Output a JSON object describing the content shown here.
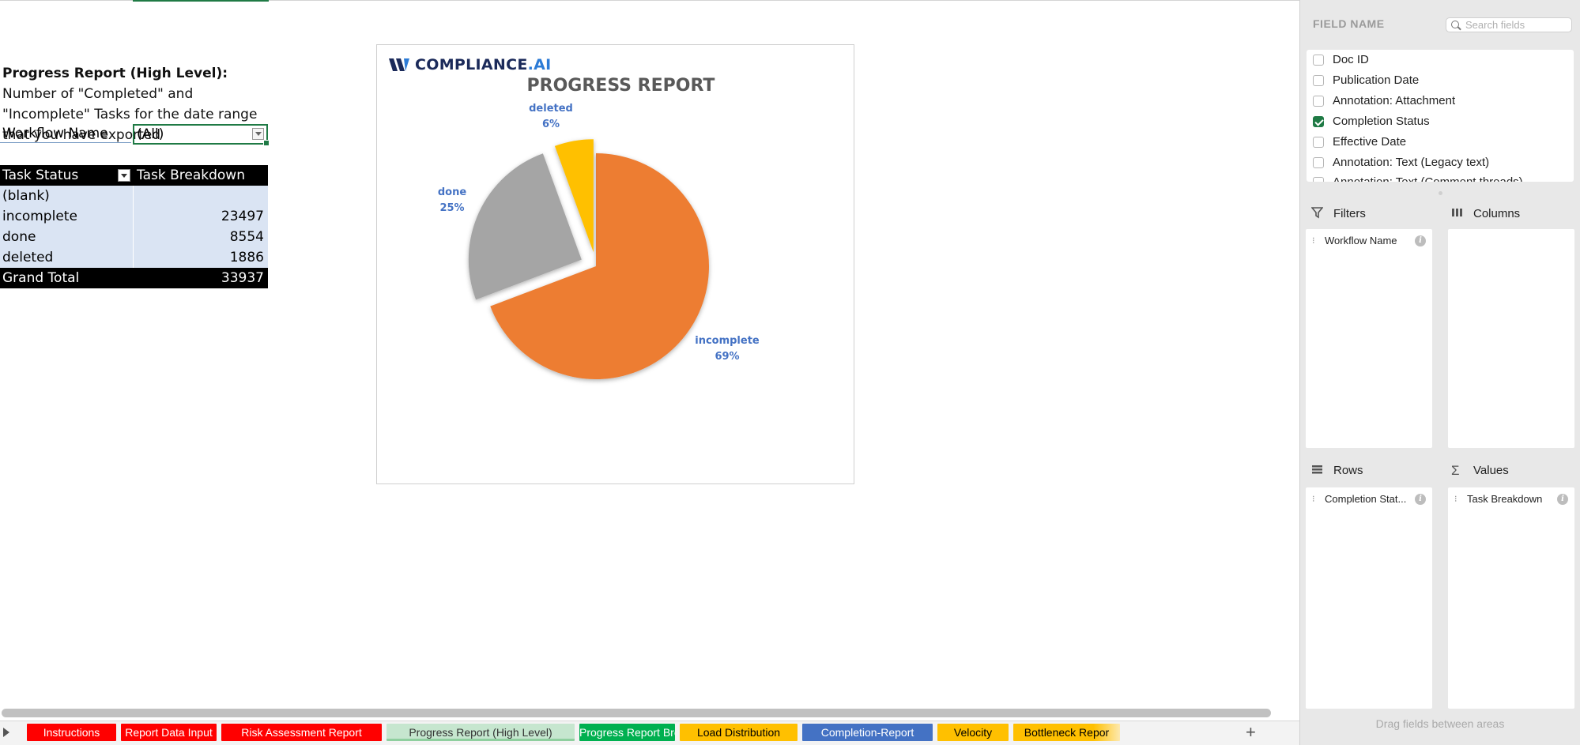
{
  "description": {
    "bold": "Progress Report (High Level):",
    "rest": " Number of \"Completed\" and \"Incomplete\" Tasks for the date range that you have exported"
  },
  "filter": {
    "label": "Workflow Name",
    "value": "(All)"
  },
  "pivot": {
    "headers": [
      "Task Status",
      "Task Breakdown"
    ],
    "rows": [
      {
        "status": "(blank)",
        "value": ""
      },
      {
        "status": "incomplete",
        "value": "23497"
      },
      {
        "status": "done",
        "value": "8554"
      },
      {
        "status": "deleted",
        "value": "1886"
      }
    ],
    "total": {
      "label": "Grand Total",
      "value": "33937"
    }
  },
  "chart_logo": {
    "brand": "COMPLIANCE",
    "suffix": ".AI"
  },
  "chart_data": {
    "type": "pie",
    "title": "PROGRESS REPORT",
    "slices": [
      {
        "label": "incomplete",
        "value": 23497,
        "percent_label": "69%",
        "color": "#ed7d31"
      },
      {
        "label": "done",
        "value": 8554,
        "percent_label": "25%",
        "color": "#a5a5a5"
      },
      {
        "label": "deleted",
        "value": 1886,
        "percent_label": "6%",
        "color": "#ffc000"
      }
    ],
    "label_color": "#4472c4"
  },
  "sheet_tabs": [
    {
      "label": "Instructions",
      "color": "#ff0000"
    },
    {
      "label": "Report Data Input",
      "color": "#ff0000"
    },
    {
      "label": "Risk Assessment Report",
      "color": "#ff0000"
    },
    {
      "label": "Progress Report (High Level)",
      "color": "#c6e6cf",
      "active": true
    },
    {
      "label": "Progress Report Breakdown",
      "color": "#00b050"
    },
    {
      "label": "Load Distribution",
      "color": "#ffc000"
    },
    {
      "label": "Completion-Report",
      "color": "#4472c4"
    },
    {
      "label": "Velocity",
      "color": "#ffc000"
    },
    {
      "label": "Bottleneck Repor",
      "color": "#ffc000"
    }
  ],
  "panel": {
    "field_name_title": "FIELD NAME",
    "search_placeholder": "Search fields",
    "fields": [
      {
        "label": "Doc ID",
        "checked": false
      },
      {
        "label": "Publication Date",
        "checked": false
      },
      {
        "label": "Annotation: Attachment",
        "checked": false
      },
      {
        "label": "Completion Status",
        "checked": true
      },
      {
        "label": "Effective Date",
        "checked": false
      },
      {
        "label": "Annotation: Text (Legacy text)",
        "checked": false
      }
    ],
    "cut_field": "Annotation: Text (Comment threads)",
    "areas": {
      "filters": {
        "label": "Filters",
        "chip": "Workflow Name"
      },
      "columns": {
        "label": "Columns"
      },
      "rows": {
        "label": "Rows",
        "chip": "Completion Stat..."
      },
      "values": {
        "label": "Values",
        "chip": "Task Breakdown"
      }
    },
    "drag_hint": "Drag fields between areas"
  }
}
